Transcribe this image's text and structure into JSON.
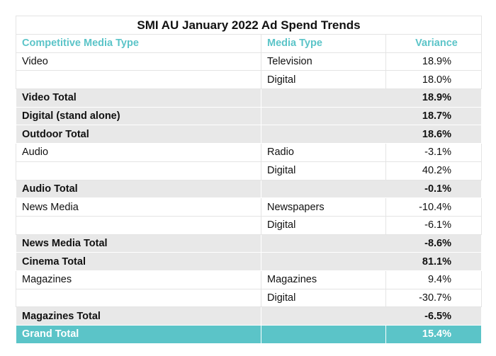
{
  "title": "SMI AU January 2022 Ad Spend Trends",
  "headers": {
    "col1": "Competitive Media Type",
    "col2": "Media Type",
    "col3": "Variance"
  },
  "rows": [
    {
      "type": "detail",
      "c1": "Video",
      "c2": "Television",
      "c3": "18.9%"
    },
    {
      "type": "detail",
      "c1": "",
      "c2": "Digital",
      "c3": "18.0%"
    },
    {
      "type": "total",
      "c1": "Video Total",
      "c2": "",
      "c3": "18.9%"
    },
    {
      "type": "total",
      "c1": "Digital (stand alone)",
      "c2": "",
      "c3": "18.7%"
    },
    {
      "type": "total",
      "c1": "Outdoor Total",
      "c2": "",
      "c3": "18.6%"
    },
    {
      "type": "detail",
      "c1": "Audio",
      "c2": "Radio",
      "c3": "-3.1%"
    },
    {
      "type": "detail",
      "c1": "",
      "c2": "Digital",
      "c3": "40.2%"
    },
    {
      "type": "total",
      "c1": "Audio Total",
      "c2": "",
      "c3": "-0.1%"
    },
    {
      "type": "detail",
      "c1": "News Media",
      "c2": "Newspapers",
      "c3": "-10.4%"
    },
    {
      "type": "detail",
      "c1": "",
      "c2": "Digital",
      "c3": "-6.1%"
    },
    {
      "type": "total",
      "c1": "News Media Total",
      "c2": "",
      "c3": "-8.6%"
    },
    {
      "type": "total",
      "c1": "Cinema Total",
      "c2": "",
      "c3": "81.1%"
    },
    {
      "type": "detail",
      "c1": "Magazines",
      "c2": "Magazines",
      "c3": "9.4%"
    },
    {
      "type": "detail",
      "c1": "",
      "c2": "Digital",
      "c3": "-30.7%"
    },
    {
      "type": "total",
      "c1": "Magazines Total",
      "c2": "",
      "c3": "-6.5%"
    },
    {
      "type": "grand",
      "c1": "Grand Total",
      "c2": "",
      "c3": "15.4%"
    }
  ],
  "colors": {
    "accent": "#5bc4c8",
    "total_bg": "#e8e8e8",
    "grid": "#e4e4e4"
  }
}
